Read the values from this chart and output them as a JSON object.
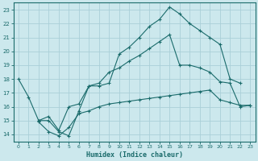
{
  "xlabel": "Humidex (Indice chaleur)",
  "bg_color": "#cce8ed",
  "line_color": "#1a6b6b",
  "grid_color": "#aacfd8",
  "xlim": [
    -0.5,
    23.5
  ],
  "ylim": [
    13.5,
    23.5
  ],
  "yticks": [
    14,
    15,
    16,
    17,
    18,
    19,
    20,
    21,
    22,
    23
  ],
  "xticks": [
    0,
    1,
    2,
    3,
    4,
    5,
    6,
    7,
    8,
    9,
    10,
    11,
    12,
    13,
    14,
    15,
    16,
    17,
    18,
    19,
    20,
    21,
    22,
    23
  ],
  "line1_x": [
    0,
    1,
    2,
    3,
    4,
    5,
    6,
    7,
    8,
    9,
    10,
    11,
    12,
    13,
    14,
    15,
    16,
    17,
    18,
    19,
    20,
    21,
    22
  ],
  "line1_y": [
    18.0,
    16.7,
    15.0,
    15.0,
    14.2,
    13.9,
    15.7,
    17.5,
    17.5,
    17.7,
    19.8,
    20.3,
    21.0,
    21.8,
    22.3,
    23.2,
    22.7,
    22.0,
    21.5,
    21.0,
    20.5,
    18.0,
    17.7
  ],
  "line2_x": [
    2,
    3,
    4,
    5,
    6,
    7,
    8,
    9,
    10,
    11,
    12,
    13,
    14,
    15,
    16,
    17,
    18,
    19,
    20,
    21,
    22,
    23
  ],
  "line2_y": [
    15.0,
    15.3,
    14.3,
    16.0,
    16.2,
    17.5,
    17.7,
    18.5,
    18.8,
    19.3,
    19.7,
    20.2,
    20.7,
    21.2,
    19.0,
    19.0,
    18.8,
    18.5,
    17.8,
    17.7,
    16.0,
    16.1
  ],
  "line3_x": [
    2,
    3,
    4,
    5,
    6,
    7,
    8,
    9,
    10,
    11,
    12,
    13,
    14,
    15,
    16,
    17,
    18,
    19,
    20,
    21,
    22,
    23
  ],
  "line3_y": [
    14.9,
    14.2,
    13.9,
    14.5,
    15.5,
    15.7,
    16.0,
    16.2,
    16.3,
    16.4,
    16.5,
    16.6,
    16.7,
    16.8,
    16.9,
    17.0,
    17.1,
    17.2,
    16.5,
    16.3,
    16.1,
    16.1
  ]
}
